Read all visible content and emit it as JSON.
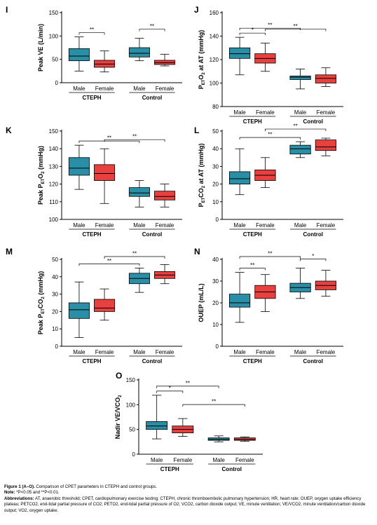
{
  "colors": {
    "male": "#2a8ea6",
    "female": "#e8403f"
  },
  "chart_data": [
    {
      "id": "I",
      "type": "box",
      "ylabel": "Peak VE (L/min)",
      "ylim": [
        0,
        150
      ],
      "yticks": [
        0,
        50,
        100,
        150
      ],
      "categories": [
        "Male",
        "Female",
        "Male",
        "Female"
      ],
      "groups": [
        "CTEPH",
        "Control"
      ],
      "boxes": [
        {
          "min": 25,
          "q1": 47,
          "median": 57,
          "q3": 73,
          "max": 98
        },
        {
          "min": 23,
          "q1": 33,
          "median": 40,
          "q3": 48,
          "max": 68
        },
        {
          "min": 47,
          "q1": 55,
          "median": 63,
          "q3": 75,
          "max": 95
        },
        {
          "min": 36,
          "q1": 39,
          "median": 43,
          "q3": 48,
          "max": 61
        }
      ],
      "annotations": [
        {
          "from": 0,
          "to": 1,
          "text": "**"
        },
        {
          "from": 2,
          "to": 3,
          "text": "**"
        }
      ]
    },
    {
      "id": "J",
      "type": "box",
      "ylabel": "PETO2 at AT (mmHg)",
      "ylabel_parts": [
        "P",
        "ET",
        "O",
        "2",
        " at AT (mmHg)"
      ],
      "ylim": [
        80,
        160
      ],
      "yticks": [
        80,
        100,
        120,
        140,
        160
      ],
      "categories": [
        "Male",
        "Female",
        "Male",
        "Female"
      ],
      "groups": [
        "CTEPH",
        "Control"
      ],
      "boxes": [
        {
          "min": 107,
          "q1": 121,
          "median": 125,
          "q3": 130,
          "max": 139
        },
        {
          "min": 110,
          "q1": 117,
          "median": 121,
          "q3": 125,
          "max": 134
        },
        {
          "min": 95,
          "q1": 103,
          "median": 105,
          "q3": 106,
          "max": 112
        },
        {
          "min": 97,
          "q1": 100,
          "median": 104,
          "q3": 107,
          "max": 113
        }
      ],
      "annotations": [
        {
          "from": 0,
          "to": 1,
          "text": "*"
        },
        {
          "from": 0,
          "to": 2,
          "text": "**"
        },
        {
          "from": 1,
          "to": 3,
          "text": "**"
        }
      ]
    },
    {
      "id": "K",
      "type": "box",
      "ylabel": "Peak PETO2 (mmHg)",
      "ylabel_parts": [
        "Peak P",
        "ET",
        "O",
        "2",
        " (mmHg)"
      ],
      "ylim": [
        100,
        150
      ],
      "yticks": [
        100,
        110,
        120,
        130,
        140,
        150
      ],
      "categories": [
        "Male",
        "Female",
        "Male",
        "Female"
      ],
      "groups": [
        "CTEPH",
        "Control"
      ],
      "boxes": [
        {
          "min": 117,
          "q1": 125,
          "median": 129,
          "q3": 135,
          "max": 142
        },
        {
          "min": 109,
          "q1": 122,
          "median": 126,
          "q3": 131,
          "max": 140
        },
        {
          "min": 107,
          "q1": 113,
          "median": 115,
          "q3": 118,
          "max": 122
        },
        {
          "min": 107,
          "q1": 111,
          "median": 113,
          "q3": 116,
          "max": 120
        }
      ],
      "annotations": [
        {
          "from": 0,
          "to": 2,
          "text": "**"
        },
        {
          "from": 1,
          "to": 3,
          "text": "**"
        }
      ]
    },
    {
      "id": "L",
      "type": "box",
      "ylabel": "PETCO2 at AT (mmHg)",
      "ylabel_parts": [
        "P",
        "ET",
        "CO",
        "2",
        " at AT (mmHg)"
      ],
      "ylim": [
        0,
        50
      ],
      "yticks": [
        0,
        10,
        20,
        30,
        40,
        50
      ],
      "categories": [
        "Male",
        "Female",
        "Male",
        "Female"
      ],
      "groups": [
        "CTEPH",
        "Control"
      ],
      "boxes": [
        {
          "min": 14,
          "q1": 20,
          "median": 23,
          "q3": 27,
          "max": 40
        },
        {
          "min": 18,
          "q1": 22,
          "median": 25,
          "q3": 28,
          "max": 35
        },
        {
          "min": 35,
          "q1": 37,
          "median": 40,
          "q3": 42,
          "max": 44
        },
        {
          "min": 36,
          "q1": 39,
          "median": 41,
          "q3": 45,
          "max": 46
        }
      ],
      "annotations": [
        {
          "from": 0,
          "to": 2,
          "text": "**"
        },
        {
          "from": 1,
          "to": 3,
          "text": "**"
        }
      ]
    },
    {
      "id": "M",
      "type": "box",
      "ylabel": "Peak PETCO2 (mmHg)",
      "ylabel_parts": [
        "Peak P",
        "ET",
        "CO",
        "2",
        " (mmHg)"
      ],
      "ylim": [
        0,
        50
      ],
      "yticks": [
        0,
        10,
        20,
        30,
        40,
        50
      ],
      "categories": [
        "Male",
        "Female",
        "Male",
        "Female"
      ],
      "groups": [
        "CTEPH",
        "Control"
      ],
      "boxes": [
        {
          "min": 5,
          "q1": 16,
          "median": 21,
          "q3": 25,
          "max": 37
        },
        {
          "min": 15,
          "q1": 20,
          "median": 22,
          "q3": 27,
          "max": 33
        },
        {
          "min": 31,
          "q1": 36,
          "median": 39,
          "q3": 42,
          "max": 45
        },
        {
          "min": 36,
          "q1": 39,
          "median": 41,
          "q3": 43,
          "max": 47
        }
      ],
      "annotations": [
        {
          "from": 0,
          "to": 2,
          "text": "**"
        },
        {
          "from": 1,
          "to": 3,
          "text": "**"
        }
      ]
    },
    {
      "id": "N",
      "type": "box",
      "ylabel": "OUEP (mL/L)",
      "ylim": [
        0,
        40
      ],
      "yticks": [
        0,
        10,
        20,
        30,
        40
      ],
      "categories": [
        "Male",
        "Female",
        "Male",
        "Female"
      ],
      "groups": [
        "CTEPH",
        "Control"
      ],
      "boxes": [
        {
          "min": 11,
          "q1": 18,
          "median": 20,
          "q3": 24,
          "max": 34
        },
        {
          "min": 16,
          "q1": 22,
          "median": 25,
          "q3": 28,
          "max": 33
        },
        {
          "min": 22,
          "q1": 25,
          "median": 27,
          "q3": 29,
          "max": 36
        },
        {
          "min": 23,
          "q1": 26,
          "median": 28,
          "q3": 30,
          "max": 35
        }
      ],
      "annotations": [
        {
          "from": 0,
          "to": 1,
          "text": "**"
        },
        {
          "from": 0,
          "to": 2,
          "text": "**"
        },
        {
          "from": 2,
          "to": 3,
          "text": "*"
        }
      ]
    },
    {
      "id": "O",
      "type": "box",
      "ylabel": "Nadir VE/VCO2",
      "ylabel_parts": [
        "Nadir VE/VCO",
        "2"
      ],
      "ylim": [
        0,
        150
      ],
      "yticks": [
        0,
        50,
        100,
        150
      ],
      "categories": [
        "Male",
        "Female",
        "Male",
        "Female"
      ],
      "groups": [
        "CTEPH",
        "Control"
      ],
      "boxes": [
        {
          "min": 31,
          "q1": 50,
          "median": 57,
          "q3": 66,
          "max": 119
        },
        {
          "min": 36,
          "q1": 43,
          "median": 50,
          "q3": 57,
          "max": 72
        },
        {
          "min": 25,
          "q1": 28,
          "median": 30,
          "q3": 33,
          "max": 37
        },
        {
          "min": 26,
          "q1": 28,
          "median": 30,
          "q3": 33,
          "max": 35
        }
      ],
      "annotations": [
        {
          "from": 0,
          "to": 1,
          "text": "*"
        },
        {
          "from": 0,
          "to": 2,
          "text": "**"
        },
        {
          "from": 1,
          "to": 3,
          "text": "**"
        }
      ]
    }
  ],
  "caption": {
    "line1_bold": "Figure 1 (A–O).",
    "line1_rest": " Comparison of CPET parameters in CTEPH and control groups.",
    "note_bold": "Note:",
    "note_rest": " *P<0.05 and **P<0.01.",
    "abbr_bold": "Abbreviations:",
    "abbr_rest": " AT, anaerobic threshold; CPET, cardiopulmonary exercise testing; CTEPH, chronic thromboembolic pulmonary hypertension; HR, heart rate; OUEP, oxygen uptake efficiency plateau; PETCO2, end-tidal partial pressure of CO2; PETO2, end-tidal partial pressure of O2; VCO2, carbon dioxide output; VE, minute ventilation; VE/VCO2, minute ventilation/carbon dioxide output; VO2, oxygen uptake."
  }
}
